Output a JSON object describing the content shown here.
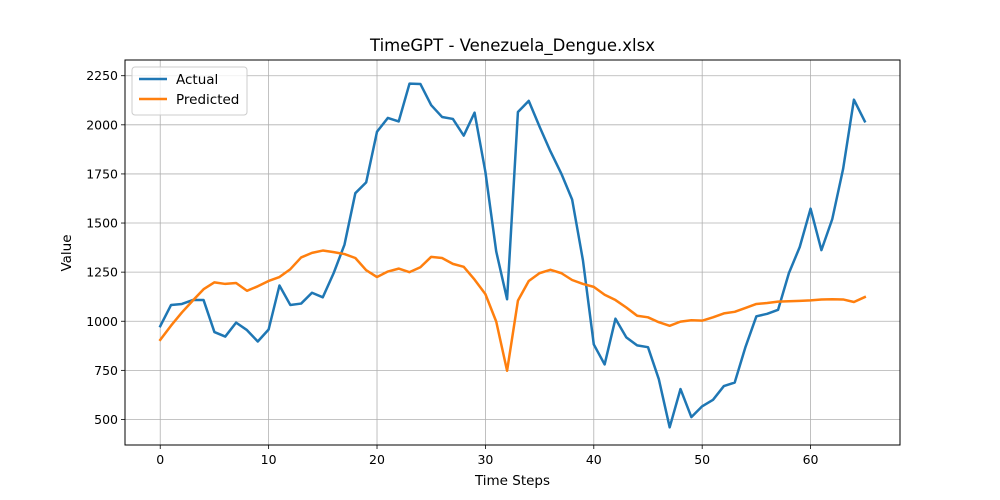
{
  "chart_data": {
    "type": "line",
    "title": "TimeGPT - Venezuela_Dengue.xlsx",
    "xlabel": "Time Steps",
    "ylabel": "Value",
    "xlim": [
      -3.25,
      68.25
    ],
    "ylim": [
      370,
      2330
    ],
    "x_ticks": [
      "0",
      "10",
      "20",
      "30",
      "40",
      "50",
      "60"
    ],
    "x_tick_values": [
      0,
      10,
      20,
      30,
      40,
      50,
      60
    ],
    "y_ticks": [
      "500",
      "750",
      "1000",
      "1250",
      "1500",
      "1750",
      "2000",
      "2250"
    ],
    "y_tick_values": [
      500,
      750,
      1000,
      1250,
      1500,
      1750,
      2000,
      2250
    ],
    "grid": true,
    "legend_position": "top-left",
    "x": [
      0,
      1,
      2,
      3,
      4,
      5,
      6,
      7,
      8,
      9,
      10,
      11,
      12,
      13,
      14,
      15,
      16,
      17,
      18,
      19,
      20,
      21,
      22,
      23,
      24,
      25,
      26,
      27,
      28,
      29,
      30,
      31,
      32,
      33,
      34,
      35,
      36,
      37,
      38,
      39,
      40,
      41,
      42,
      43,
      44,
      45,
      46,
      47,
      48,
      49,
      50,
      51,
      52,
      53,
      54,
      55,
      56,
      57,
      58,
      59,
      60,
      61,
      62,
      63,
      64,
      65
    ],
    "series": [
      {
        "name": "Actual",
        "color": "#1f77b4",
        "values": [
          975,
          1083,
          1088,
          1108,
          1108,
          945,
          922,
          993,
          955,
          897,
          958,
          1182,
          1083,
          1090,
          1145,
          1122,
          1245,
          1390,
          1652,
          1707,
          1965,
          2035,
          2017,
          2210,
          2208,
          2100,
          2040,
          2030,
          1945,
          2062,
          1760,
          1355,
          1112,
          2065,
          2122,
          1990,
          1865,
          1752,
          1620,
          1310,
          882,
          780,
          1013,
          918,
          877,
          868,
          705,
          460,
          655,
          512,
          567,
          600,
          670,
          688,
          870,
          1025,
          1038,
          1058,
          1245,
          1378,
          1573,
          1362,
          1520,
          1775,
          2128,
          2018
        ]
      },
      {
        "name": "Predicted",
        "color": "#ff7f0e",
        "values": [
          905,
          978,
          1045,
          1105,
          1163,
          1198,
          1190,
          1195,
          1155,
          1178,
          1205,
          1225,
          1265,
          1325,
          1348,
          1360,
          1352,
          1342,
          1322,
          1260,
          1225,
          1253,
          1268,
          1250,
          1275,
          1328,
          1322,
          1292,
          1277,
          1212,
          1138,
          998,
          748,
          1105,
          1205,
          1245,
          1262,
          1245,
          1210,
          1190,
          1175,
          1135,
          1108,
          1070,
          1028,
          1020,
          995,
          977,
          998,
          1005,
          1003,
          1020,
          1040,
          1048,
          1068,
          1088,
          1093,
          1100,
          1102,
          1104,
          1106,
          1111,
          1112,
          1111,
          1098,
          1123
        ]
      }
    ]
  }
}
